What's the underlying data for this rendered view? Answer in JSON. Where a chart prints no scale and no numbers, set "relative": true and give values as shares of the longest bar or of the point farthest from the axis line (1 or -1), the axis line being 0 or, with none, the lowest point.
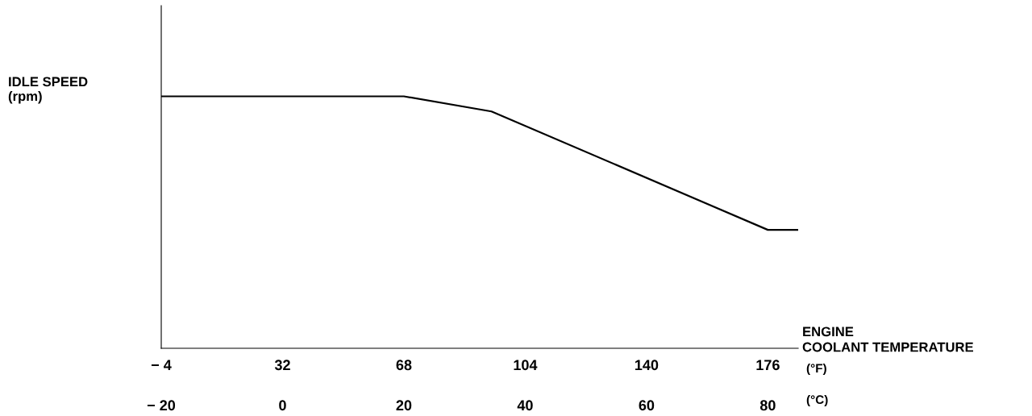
{
  "chart_data": {
    "type": "line",
    "relative": true,
    "ylabel": "IDLE SPEED\n(rpm)",
    "xlabel": "ENGINE\nCOOLANT TEMPERATURE",
    "x": [
      -4,
      68,
      94,
      176,
      185
    ],
    "series": [
      {
        "color": "#000000",
        "values": [
          1.0,
          1.0,
          0.94,
          0.47,
          0.47
        ]
      }
    ],
    "xlim": [
      -4,
      185
    ],
    "xticks": [
      {
        "value": -4,
        "label": "− 4"
      },
      32,
      68,
      104,
      140,
      176
    ],
    "x2lim": [
      -20,
      85
    ],
    "x2ticks": [
      {
        "value": -20,
        "label": "− 20"
      },
      0,
      20,
      40,
      60,
      80
    ],
    "annotations": [
      "(°F)",
      "(°C)"
    ],
    "grid": false,
    "legend": false,
    "marker": "none",
    "line_style": "solid"
  }
}
